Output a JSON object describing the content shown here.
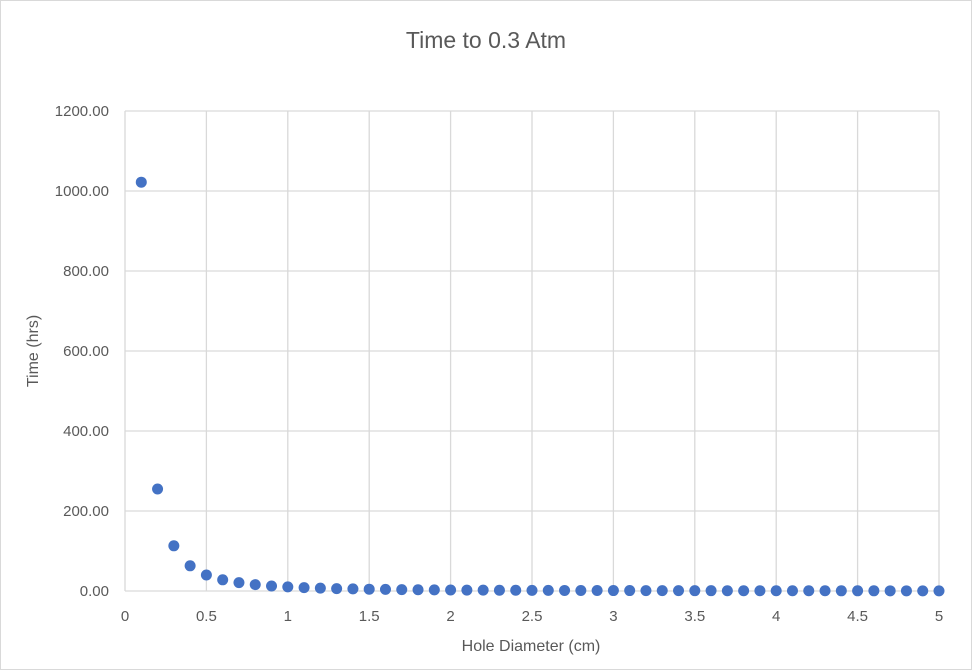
{
  "chart_data": {
    "type": "scatter",
    "title": "Time to 0.3 Atm",
    "xlabel": "Hole Diameter (cm)",
    "ylabel": "Time (hrs)",
    "xlim": [
      0,
      5
    ],
    "ylim": [
      0,
      1200
    ],
    "x_ticks": [
      0,
      0.5,
      1,
      1.5,
      2,
      2.5,
      3,
      3.5,
      4,
      4.5,
      5
    ],
    "x_tick_labels": [
      "0",
      "0.5",
      "1",
      "1.5",
      "2",
      "2.5",
      "3",
      "3.5",
      "4",
      "4.5",
      "5"
    ],
    "y_ticks": [
      0,
      200,
      400,
      600,
      800,
      1000,
      1200
    ],
    "y_tick_labels": [
      "0.00",
      "200.00",
      "400.00",
      "600.00",
      "800.00",
      "1000.00",
      "1200.00"
    ],
    "grid": true,
    "legend": "none",
    "marker_color": "#4472c4",
    "series": [
      {
        "x": [
          0.1,
          0.2,
          0.3,
          0.4,
          0.5,
          0.6,
          0.7,
          0.8,
          0.9,
          1.0,
          1.1,
          1.2,
          1.3,
          1.4,
          1.5,
          1.6,
          1.7,
          1.8,
          1.9,
          2.0,
          2.1,
          2.2,
          2.3,
          2.4,
          2.5,
          2.6,
          2.7,
          2.8,
          2.9,
          3.0,
          3.1,
          3.2,
          3.3,
          3.4,
          3.5,
          3.6,
          3.7,
          3.8,
          3.9,
          4.0,
          4.1,
          4.2,
          4.3,
          4.4,
          4.5,
          4.6,
          4.7,
          4.8,
          4.9,
          5.0
        ],
        "values": [
          1022,
          255,
          113,
          63,
          40,
          28,
          20.9,
          16,
          12.6,
          10.2,
          8.4,
          7.1,
          6,
          5.2,
          4.5,
          4,
          3.5,
          3.1,
          2.8,
          2.6,
          2.3,
          2.1,
          1.9,
          1.8,
          1.6,
          1.5,
          1.4,
          1.3,
          1.2,
          1.1,
          1.1,
          1,
          0.9,
          0.9,
          0.8,
          0.8,
          0.7,
          0.7,
          0.7,
          0.6,
          0.6,
          0.6,
          0.55,
          0.5,
          0.5,
          0.5,
          0.46,
          0.44,
          0.43,
          0.41
        ]
      }
    ]
  }
}
